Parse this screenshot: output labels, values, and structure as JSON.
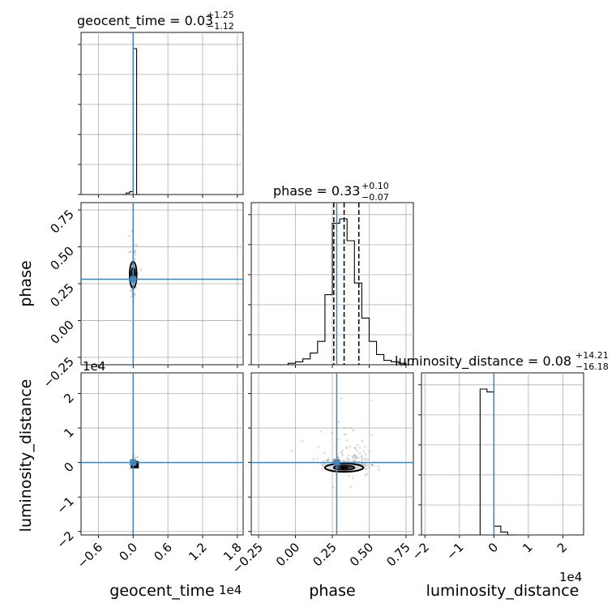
{
  "titles": {
    "geocent": {
      "name": "geocent_time = 0.03",
      "sup": "+1.25",
      "sub": "−1.12"
    },
    "phase": {
      "name": "phase = 0.33",
      "sup": "+0.10",
      "sub": "−0.07"
    },
    "lumdist": {
      "name": "luminosity_distance = 0.08",
      "sup": "+14.21",
      "sub": "−16.18"
    }
  },
  "labels": {
    "geocent_x": "geocent_time",
    "phase_x": "phase",
    "lumdist_x": "luminosity_distance",
    "phase_y": "phase",
    "lumdist_y": "luminosity_distance",
    "offset_1e4": "1e4"
  },
  "colors": {
    "truth": "#4682b4",
    "hist": "#000000",
    "grid": "#b0b0b0",
    "samples": "#888888"
  },
  "chart_data": {
    "type": "corner",
    "parameters": [
      "geocent_time",
      "phase",
      "luminosity_distance"
    ],
    "truths": {
      "geocent_time": 0.0,
      "phase": 0.28,
      "luminosity_distance": 0.0
    },
    "ranges": {
      "geocent_time": [
        -0.9,
        1.9
      ],
      "phase": [
        -0.3,
        0.8
      ],
      "luminosity_distance": [
        -2.1,
        2.6
      ]
    },
    "ticks": {
      "geocent_time": {
        "values": [
          -0.6,
          0.0,
          0.6,
          1.2,
          1.8
        ],
        "labels": [
          "−0.6",
          "0.0",
          "0.6",
          "1.2",
          "1.8"
        ],
        "scale": "1e4"
      },
      "phase": {
        "values": [
          -0.25,
          0.0,
          0.25,
          0.5,
          0.75
        ],
        "labels": [
          "−0.25",
          "0.00",
          "0.25",
          "0.50",
          "0.75"
        ]
      },
      "luminosity_distance": {
        "values": [
          -2,
          -1,
          0,
          1,
          2
        ],
        "labels": [
          "−2",
          "−1",
          "0",
          "1",
          "2"
        ],
        "scale": "1e4"
      }
    },
    "quantiles": {
      "phase": [
        0.26,
        0.33,
        0.43
      ]
    },
    "hist_geocent_time": {
      "bin_edges": [
        -0.18,
        -0.12,
        -0.06,
        0.0,
        0.06,
        0.12
      ],
      "counts": [
        0,
        0.01,
        0.02,
        1.0,
        0.0
      ]
    },
    "hist_phase": {
      "bin_edges": [
        -0.05,
        0.0,
        0.05,
        0.1,
        0.15,
        0.2,
        0.25,
        0.3,
        0.35,
        0.4,
        0.45,
        0.5,
        0.55,
        0.6,
        0.65,
        0.7,
        0.75
      ],
      "counts": [
        0.01,
        0.02,
        0.04,
        0.08,
        0.16,
        0.48,
        0.97,
        1.0,
        0.85,
        0.56,
        0.32,
        0.16,
        0.07,
        0.03,
        0.02,
        0.01
      ]
    },
    "hist_luminosity_distance": {
      "bin_edges": [
        -0.4,
        -0.2,
        0.0,
        0.2,
        0.4,
        0.6
      ],
      "counts": [
        1.0,
        0.98,
        0.06,
        0.02,
        0.0
      ]
    },
    "contour_phase_vs_geocent": {
      "center": [
        0.0,
        0.31
      ],
      "halfwidth": [
        0.06,
        0.09
      ]
    },
    "contour_ld_vs_phase": {
      "center": [
        0.33,
        -0.15
      ],
      "halfwidth": [
        0.13,
        0.12
      ]
    }
  }
}
